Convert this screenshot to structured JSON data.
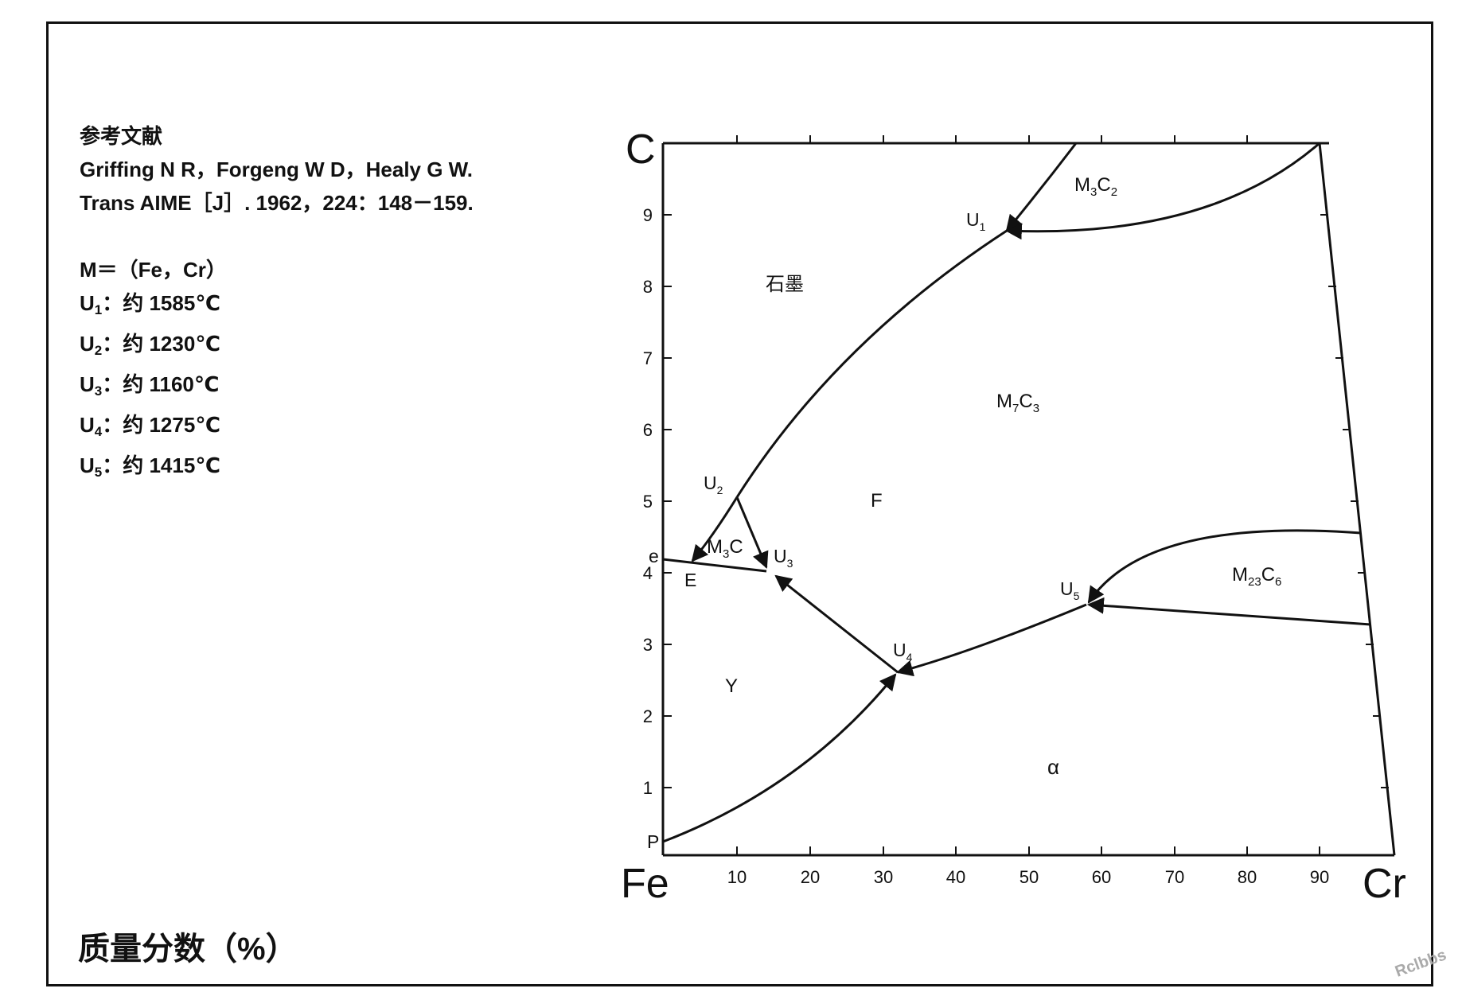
{
  "references": {
    "heading": "参考文献",
    "line1": "Griffing N R，Forgeng W D，Healy G W.",
    "line2": "Trans AIME［J］. 1962，224：148－159."
  },
  "notes": {
    "m_def": "M＝（Fe，Cr）",
    "points": [
      {
        "label": "U",
        "sub": "1",
        "text": "：约 1585℃"
      },
      {
        "label": "U",
        "sub": "2",
        "text": "：约 1230℃"
      },
      {
        "label": "U",
        "sub": "3",
        "text": "：约 1160℃"
      },
      {
        "label": "U",
        "sub": "4",
        "text": "：约 1275℃"
      },
      {
        "label": "U",
        "sub": "5",
        "text": "：约 1415℃"
      }
    ]
  },
  "x_axis_title": "质量分数（%）",
  "diagram": {
    "corner_top": "C",
    "corner_left": "Fe",
    "corner_right": "Cr",
    "x_ticks": [
      "10",
      "20",
      "30",
      "40",
      "50",
      "60",
      "70",
      "80",
      "90"
    ],
    "y_ticks": [
      "1",
      "2",
      "3",
      "4",
      "5",
      "6",
      "7",
      "8",
      "9"
    ],
    "regions": {
      "graphite": "石墨",
      "m3c2": {
        "base": "M",
        "s1": "3",
        "mid": "C",
        "s2": "2"
      },
      "m7c3": {
        "base": "M",
        "s1": "7",
        "mid": "C",
        "s2": "3"
      },
      "m23c6": {
        "base": "M",
        "s1": "23",
        "mid": "C",
        "s2": "6"
      },
      "m3c": {
        "base": "M",
        "s1": "3",
        "mid": "C",
        "s2": ""
      },
      "ferrite": "F",
      "gamma": "Y",
      "alpha": "α"
    },
    "points": {
      "u1": {
        "base": "U",
        "sub": "1"
      },
      "u2": {
        "base": "U",
        "sub": "2"
      },
      "u3": {
        "base": "U",
        "sub": "3"
      },
      "u4": {
        "base": "U",
        "sub": "4"
      },
      "u5": {
        "base": "U",
        "sub": "5"
      },
      "e_upper": "e",
      "e_lower": "E",
      "p": "P"
    }
  },
  "watermark": "Rclbbs"
}
